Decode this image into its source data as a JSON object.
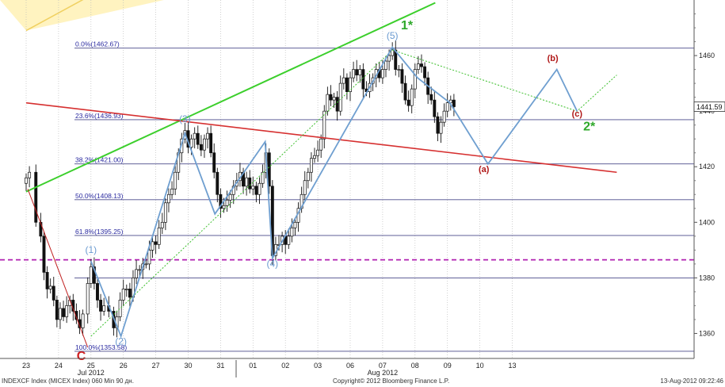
{
  "chart_data": {
    "type": "candlestick",
    "footer": {
      "source": "INDEXCF Index (MICEX Index) 060 Min 90 дн.",
      "copyright": "Copyright© 2012 Bloomberg Finance L.P.",
      "timestamp": "13-Aug-2012 09:22:46"
    },
    "last_price": "1441.59",
    "y_axis": {
      "ylim": [
        1351,
        1480
      ],
      "ticks": [
        1360,
        1380,
        1400,
        1420,
        1440,
        1460
      ]
    },
    "x_axis": {
      "days": [
        "23",
        "24",
        "25",
        "26",
        "27",
        "30",
        "31",
        "01",
        "02",
        "03",
        "06",
        "07",
        "08",
        "09",
        "10",
        "13"
      ],
      "months": [
        {
          "label": "Jul 2012",
          "at_day": "25"
        },
        {
          "label": "Aug 2012",
          "at_day": "07"
        }
      ]
    },
    "fib_levels": [
      {
        "label": "0.0%(1462.67)",
        "value": 1462.67
      },
      {
        "label": "23.6%(1436.93)",
        "value": 1436.93
      },
      {
        "label": "38.2%(1421.00)",
        "value": 1421.0
      },
      {
        "label": "50.0%(1408.13)",
        "value": 1408.13
      },
      {
        "label": "61.8%(1395.25)",
        "value": 1395.25
      },
      {
        "label": "100.0%(1353.58)",
        "value": 1353.58
      }
    ],
    "extra_level": 1380,
    "magenta_level": 1386.5,
    "series": [
      {
        "points": [
          [
            0,
            1416
          ],
          [
            0.4,
            1418
          ],
          [
            1.2,
            1400
          ],
          [
            1.8,
            1395
          ],
          [
            2.2,
            1382
          ],
          [
            2.6,
            1376
          ],
          [
            3,
            1377
          ],
          [
            3.4,
            1372
          ],
          [
            3.8,
            1365
          ],
          [
            4.2,
            1369
          ],
          [
            4.6,
            1366
          ],
          [
            5,
            1370
          ],
          [
            5.4,
            1372
          ],
          [
            5.8,
            1368
          ],
          [
            6.2,
            1365
          ],
          [
            6.6,
            1362
          ],
          [
            7,
            1367
          ],
          [
            7.6,
            1378
          ],
          [
            8,
            1384
          ],
          [
            8.4,
            1378
          ],
          [
            8.8,
            1372
          ],
          [
            9.2,
            1368
          ],
          [
            9.6,
            1370
          ],
          [
            10.2,
            1368
          ],
          [
            10.8,
            1362
          ],
          [
            11.2,
            1366
          ],
          [
            11.6,
            1372
          ],
          [
            12,
            1376
          ],
          [
            12.4,
            1376
          ],
          [
            12.8,
            1373
          ],
          [
            13.2,
            1380
          ],
          [
            13.6,
            1383
          ],
          [
            14,
            1383
          ],
          [
            14.4,
            1385
          ],
          [
            14.8,
            1385
          ],
          [
            15.2,
            1390
          ],
          [
            15.6,
            1393
          ],
          [
            16,
            1392
          ],
          [
            16.4,
            1398
          ],
          [
            16.8,
            1400
          ],
          [
            17.2,
            1407
          ],
          [
            17.6,
            1410
          ],
          [
            18,
            1412
          ],
          [
            18.4,
            1418
          ],
          [
            18.8,
            1425
          ],
          [
            19.2,
            1430
          ],
          [
            19.6,
            1433
          ],
          [
            20,
            1427
          ],
          [
            20.4,
            1430
          ],
          [
            20.8,
            1432
          ],
          [
            21.2,
            1428
          ],
          [
            21.6,
            1426
          ],
          [
            22,
            1430
          ],
          [
            22.4,
            1432
          ],
          [
            22.8,
            1425
          ],
          [
            23.2,
            1418
          ],
          [
            23.6,
            1410
          ],
          [
            24,
            1405
          ],
          [
            24.4,
            1406
          ],
          [
            24.8,
            1408
          ],
          [
            25.2,
            1410
          ],
          [
            25.6,
            1413
          ],
          [
            26,
            1415
          ],
          [
            26.4,
            1418
          ],
          [
            26.8,
            1413
          ],
          [
            27.2,
            1416
          ],
          [
            27.6,
            1412
          ],
          [
            28,
            1413
          ],
          [
            28.4,
            1410
          ],
          [
            28.8,
            1414
          ],
          [
            29.2,
            1418
          ],
          [
            29.6,
            1425
          ],
          [
            30,
            1413
          ],
          [
            30.4,
            1388
          ],
          [
            30.8,
            1392
          ],
          [
            31.2,
            1392
          ],
          [
            31.6,
            1395
          ],
          [
            32,
            1392
          ],
          [
            32.4,
            1395
          ],
          [
            32.8,
            1398
          ],
          [
            33.2,
            1400
          ],
          [
            33.6,
            1405
          ],
          [
            34,
            1410
          ],
          [
            34.4,
            1415
          ],
          [
            34.8,
            1418
          ],
          [
            35.2,
            1423
          ],
          [
            35.6,
            1424
          ],
          [
            36,
            1426
          ],
          [
            36.4,
            1430
          ],
          [
            36.8,
            1440
          ],
          [
            37.2,
            1446
          ],
          [
            37.6,
            1444
          ],
          [
            38,
            1445
          ],
          [
            38.4,
            1440
          ],
          [
            38.8,
            1450
          ],
          [
            39.2,
            1452
          ],
          [
            39.6,
            1447
          ],
          [
            40,
            1452
          ],
          [
            40.4,
            1455
          ],
          [
            40.8,
            1453
          ],
          [
            41.2,
            1455
          ],
          [
            41.6,
            1448
          ],
          [
            42,
            1447
          ],
          [
            42.4,
            1450
          ],
          [
            42.8,
            1452
          ],
          [
            43.2,
            1455
          ],
          [
            43.6,
            1452
          ],
          [
            44,
            1455
          ],
          [
            44.4,
            1458
          ],
          [
            44.8,
            1460
          ],
          [
            45.2,
            1462
          ],
          [
            45.6,
            1455
          ],
          [
            46,
            1455
          ],
          [
            46.4,
            1450
          ],
          [
            46.8,
            1444
          ],
          [
            47.2,
            1442
          ],
          [
            47.6,
            1448
          ],
          [
            48,
            1455
          ],
          [
            48.4,
            1457
          ],
          [
            48.8,
            1456
          ],
          [
            49.2,
            1452
          ],
          [
            49.6,
            1446
          ],
          [
            50,
            1444
          ],
          [
            50.4,
            1438
          ],
          [
            50.8,
            1432
          ],
          [
            51.2,
            1436
          ],
          [
            51.6,
            1440
          ],
          [
            52,
            1443
          ],
          [
            52.4,
            1444
          ],
          [
            52.8,
            1441.6
          ]
        ]
      }
    ],
    "annotations": {
      "wave_labels": [
        {
          "text": "(1)",
          "x": 8.0,
          "y": 1389
        },
        {
          "text": "(2)",
          "x": 11.7,
          "y": 1356
        },
        {
          "text": "(3)",
          "x": 19.6,
          "y": 1436
        },
        {
          "text": "(4)",
          "x": 30.4,
          "y": 1384
        },
        {
          "text": "(5)",
          "x": 45.2,
          "y": 1466
        },
        {
          "text": "1*",
          "x": 47.0,
          "y": 1469.5
        },
        {
          "text": "C",
          "x": 6.8,
          "y": 1350.5
        },
        {
          "text": "(a)",
          "x": 56.5,
          "y": 1418
        },
        {
          "text": "(b)",
          "x": 65.0,
          "y": 1458
        },
        {
          "text": "(c)",
          "x": 68.0,
          "y": 1438
        },
        {
          "text": "2*",
          "x": 69.5,
          "y": 1433
        }
      ],
      "wave_path": [
        [
          8,
          1386
        ],
        [
          11.7,
          1359
        ],
        [
          19.6,
          1432
        ],
        [
          23.3,
          1403
        ],
        [
          29.5,
          1429
        ],
        [
          30.4,
          1387
        ],
        [
          45.2,
          1463
        ],
        [
          48.3,
          1452
        ],
        [
          52.3,
          1443
        ],
        [
          57.0,
          1421
        ],
        [
          65.5,
          1455
        ],
        [
          68.0,
          1440
        ]
      ],
      "red_c_line": [
        [
          0.2,
          1412
        ],
        [
          7.6,
          1355
        ]
      ],
      "green_channel": [
        [
          0,
          1411
        ],
        [
          50.5,
          1479
        ]
      ],
      "yellow_channel": [
        [
          0,
          1469
        ],
        [
          17,
          1496
        ]
      ],
      "red_line": [
        [
          0,
          1443
        ],
        [
          72.9,
          1418
        ]
      ],
      "green_dotted": [
        [
          8,
          1359
        ],
        [
          45.2,
          1462
        ]
      ],
      "green_dotted_right": [
        [
          45.2,
          1462
        ],
        [
          68,
          1440
        ],
        [
          72.9,
          1453
        ]
      ]
    }
  }
}
